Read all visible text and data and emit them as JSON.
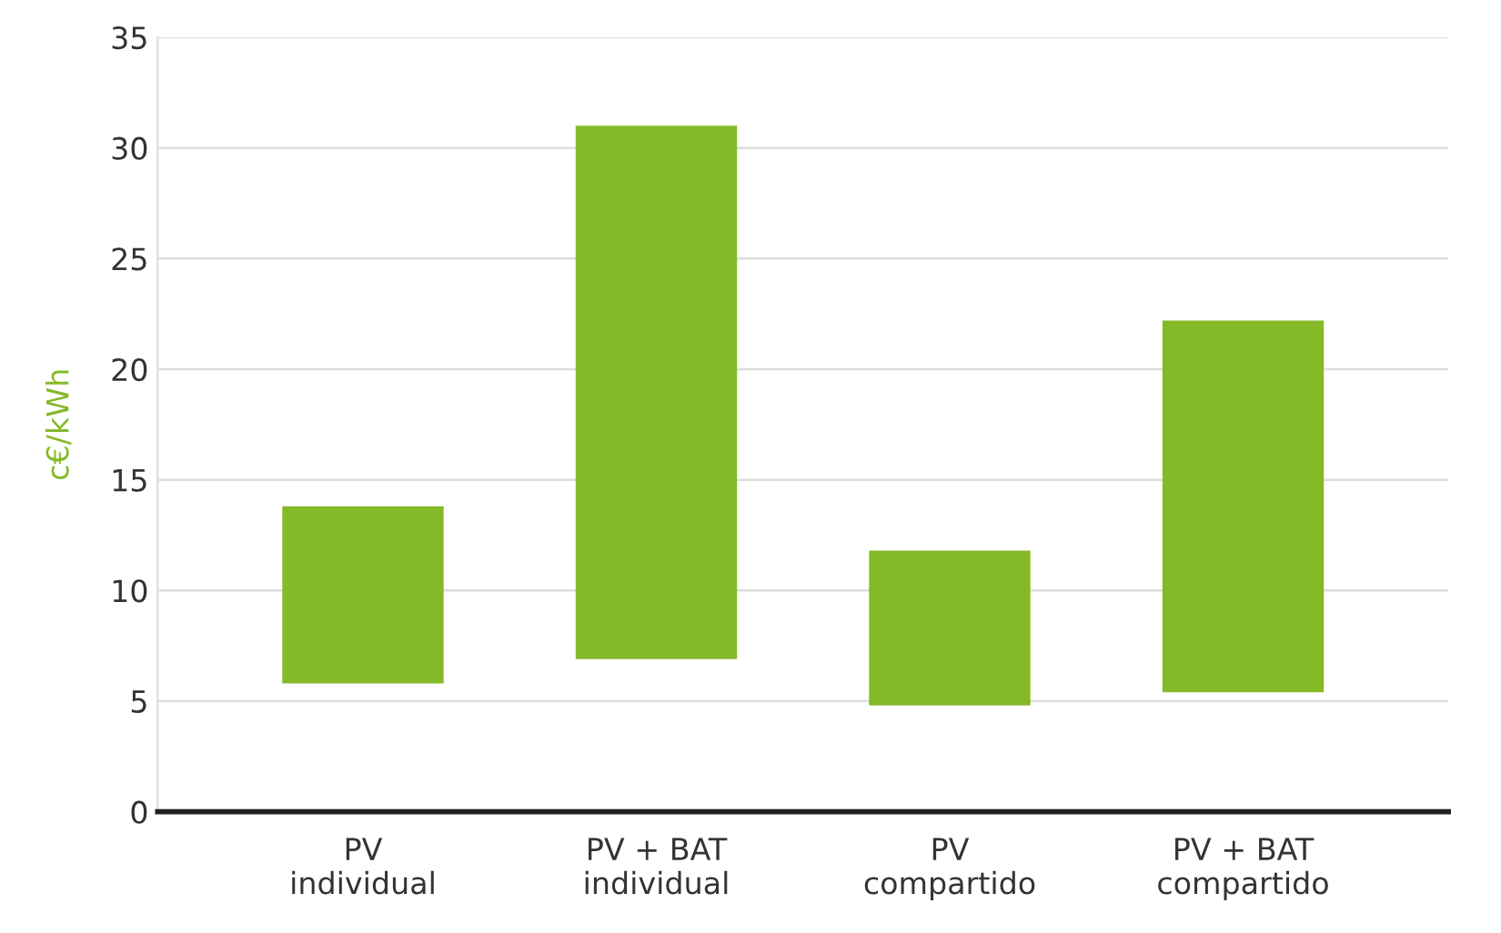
{
  "chart_data": {
    "type": "bar",
    "ylabel": "c€/kWh",
    "categories": [
      "PV\nindividual",
      "PV + BAT\nindividual",
      "PV\ncompartido",
      "PV + BAT\ncompartido"
    ],
    "base": [
      5.8,
      6.9,
      4.8,
      5.4
    ],
    "values": [
      8.0,
      24.1,
      7.0,
      16.8
    ],
    "color": "#84b928",
    "ylim": [
      0,
      35
    ],
    "yticks": [
      0,
      5,
      10,
      15,
      20,
      25,
      30,
      35
    ],
    "grid": "y"
  }
}
